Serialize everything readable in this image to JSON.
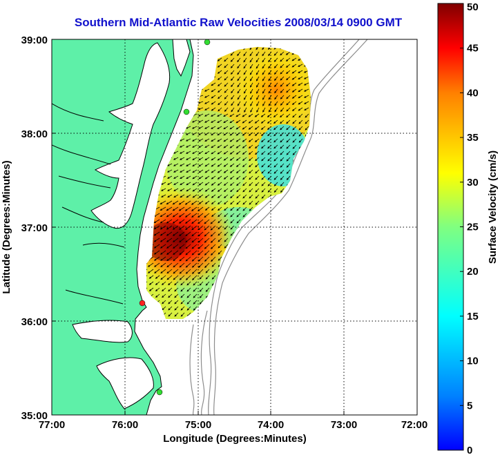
{
  "title": "Southern Mid-Atlantic Raw Velocities 2008/03/14 0900 GMT",
  "x_axis": {
    "label": "Longitude (Degrees:Minutes)",
    "ticks": [
      "77:00",
      "76:00",
      "75:00",
      "74:00",
      "73:00",
      "72:00"
    ]
  },
  "y_axis": {
    "label": "Latitude (Degrees:Minutes)",
    "ticks": [
      "39:00",
      "38:00",
      "37:00",
      "36:00",
      "35:00"
    ]
  },
  "colorbar": {
    "label": "Surface Velocity (cm/s)",
    "min": 0,
    "max": 50,
    "ticks": [
      "50",
      "45",
      "40",
      "35",
      "30",
      "25",
      "20",
      "15",
      "10",
      "5",
      "0"
    ],
    "colormap": "jet"
  },
  "colors": {
    "land": "#5ef0a8",
    "coastline": "#000000",
    "bathymetry": "#8c8c8c",
    "site_marker": "#33dd33",
    "highlight_site": "#ff2222",
    "title": "#1111cc"
  },
  "chart_data": {
    "type": "heatmap",
    "title": "Southern Mid-Atlantic Raw Velocities 2008/03/14 0900 GMT",
    "xlabel": "Longitude (Degrees:Minutes)",
    "ylabel": "Latitude (Degrees:Minutes)",
    "xlim": [
      "77:00",
      "72:00"
    ],
    "ylim": [
      "35:00",
      "39:00"
    ],
    "grid": true,
    "colorbar_range_cm_s": [
      0,
      50
    ],
    "vectors": "black current arrows overlaid on speed field",
    "radar_sites": [
      {
        "lon": "75:07",
        "lat": "38:59",
        "color": "green"
      },
      {
        "lon": "75:09",
        "lat": "38:14",
        "color": "green"
      },
      {
        "lon": "75:43",
        "lat": "36:12",
        "color": "red"
      },
      {
        "lon": "75:32",
        "lat": "35:15",
        "color": "green"
      }
    ]
  }
}
